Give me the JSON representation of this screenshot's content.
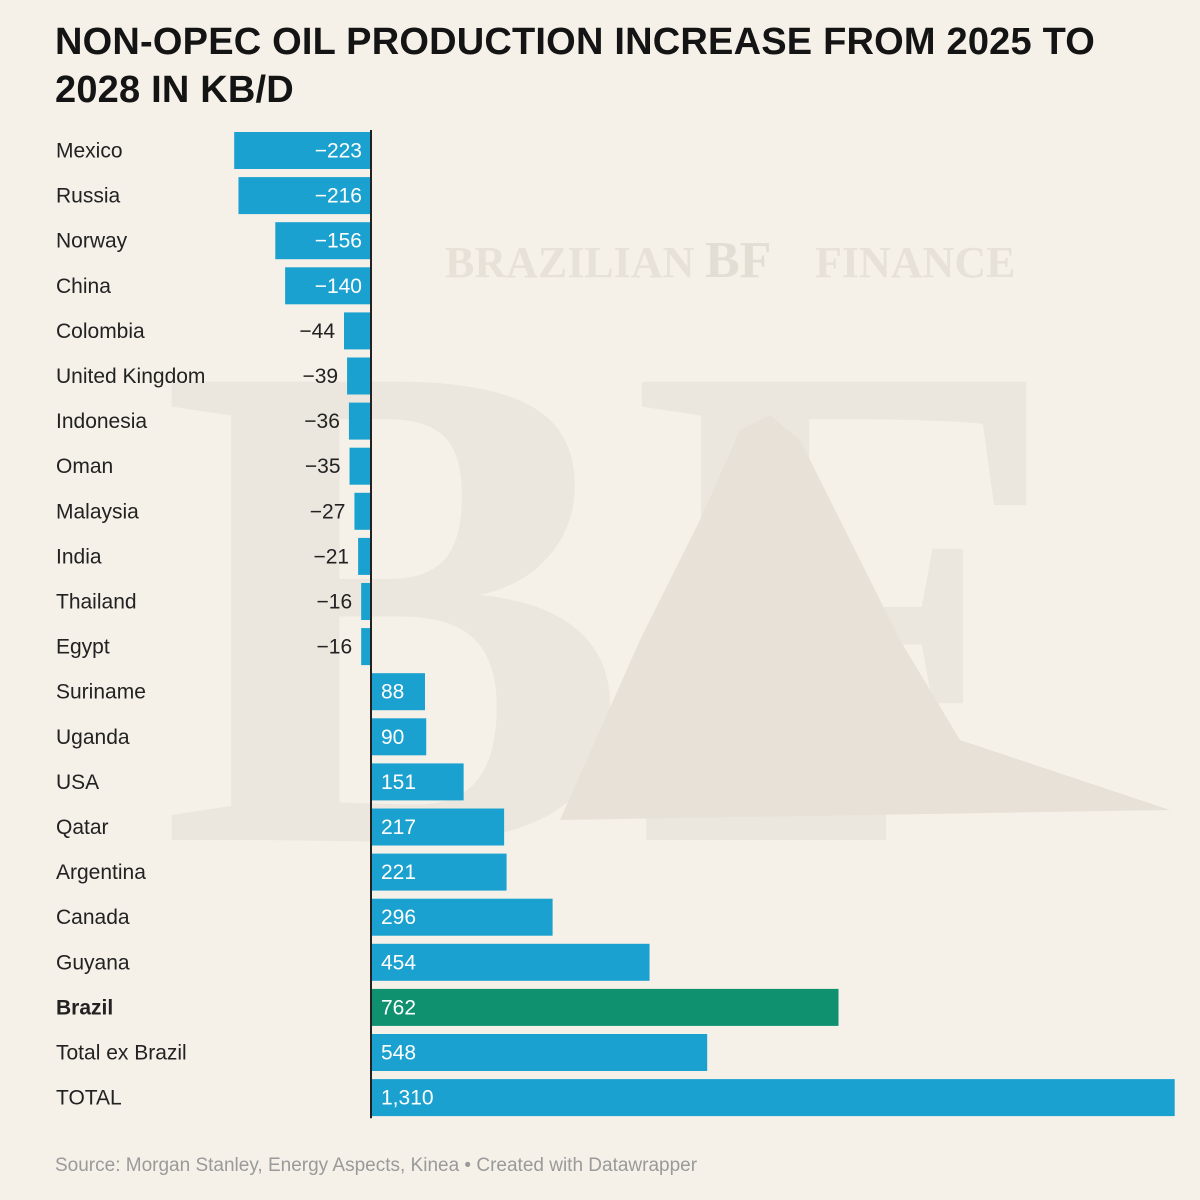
{
  "title": "NON-OPEC OIL PRODUCTION INCREASE FROM 2025 TO 2028 IN KB/D",
  "watermark": {
    "left": "BRAZILIAN",
    "mark": "BF",
    "right": "FINANCE",
    "big_letters": "BF"
  },
  "source": "Source: Morgan Stanley, Energy Aspects, Kinea • Created with Datawrapper",
  "colors": {
    "bar": "#1aa1d0",
    "highlight": "#0f9170",
    "axis": "#222222",
    "background": "#f5f0e8"
  },
  "chart_data": {
    "type": "bar",
    "orientation": "horizontal",
    "categories": [
      "Mexico",
      "Russia",
      "Norway",
      "China",
      "Colombia",
      "United Kingdom",
      "Indonesia",
      "Oman",
      "Malaysia",
      "India",
      "Thailand",
      "Egypt",
      "Suriname",
      "Uganda",
      "USA",
      "Qatar",
      "Argentina",
      "Canada",
      "Guyana",
      "Brazil",
      "Total ex Brazil",
      "TOTAL"
    ],
    "values": [
      -223,
      -216,
      -156,
      -140,
      -44,
      -39,
      -36,
      -35,
      -27,
      -21,
      -16,
      -16,
      88,
      90,
      151,
      217,
      221,
      296,
      454,
      762,
      548,
      1310
    ],
    "value_labels": [
      "−223",
      "−216",
      "−156",
      "−140",
      "−44",
      "−39",
      "−36",
      "−35",
      "−27",
      "−21",
      "−16",
      "−16",
      "88",
      "90",
      "151",
      "217",
      "221",
      "296",
      "454",
      "762",
      "548",
      "1,310"
    ],
    "highlight": "Brazil",
    "xlim": [
      -223,
      1310
    ]
  }
}
